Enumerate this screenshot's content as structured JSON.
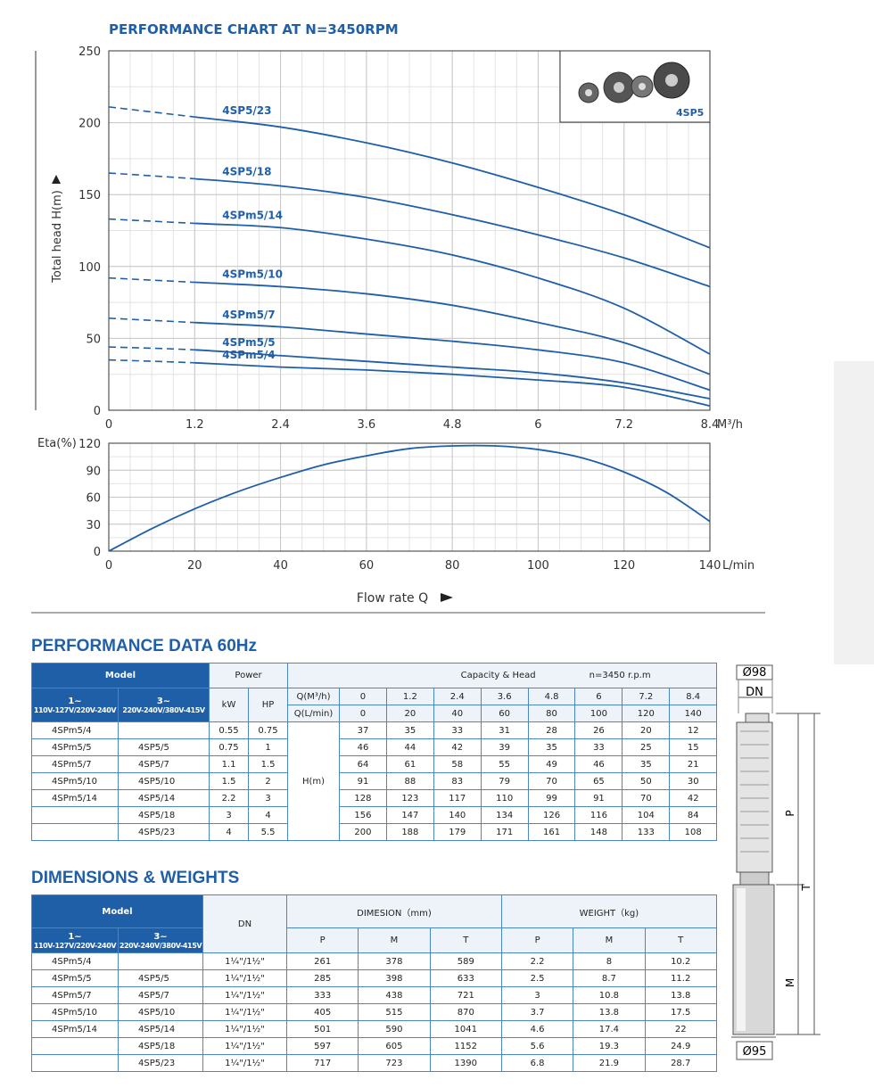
{
  "chart_data": [
    {
      "type": "line",
      "title": "PERFORMANCE CHART AT N=3450RPM",
      "ylabel": "Total head H(m)",
      "x_unit": "M³/h",
      "x": [
        0,
        1.2,
        2.4,
        3.6,
        4.8,
        6,
        7.2,
        8.4
      ],
      "xlim": [
        0,
        8.4
      ],
      "xticks": [
        0,
        1.2,
        2.4,
        3.6,
        4.8,
        6,
        7.2,
        8.4
      ],
      "ylim": [
        0,
        250
      ],
      "yticks": [
        0,
        50,
        100,
        150,
        200,
        250
      ],
      "grid": true,
      "inset_label": "4SP5",
      "series": [
        {
          "name": "4SP5/23",
          "color": "#1f5fa8",
          "values": [
            211,
            204,
            197,
            186,
            172,
            155,
            136,
            113
          ]
        },
        {
          "name": "4SP5/18",
          "color": "#1f5fa8",
          "values": [
            165,
            161,
            156,
            148,
            136,
            122,
            106,
            86
          ]
        },
        {
          "name": "4SPm5/14",
          "color": "#1f5fa8",
          "values": [
            133,
            130,
            127,
            119,
            108,
            92,
            71,
            39
          ]
        },
        {
          "name": "4SPm5/10",
          "color": "#1f5fa8",
          "values": [
            92,
            89,
            86,
            81,
            73,
            61,
            47,
            25
          ]
        },
        {
          "name": "4SPm5/7",
          "color": "#1f5fa8",
          "values": [
            64,
            61,
            58,
            53,
            48,
            42,
            33,
            14
          ]
        },
        {
          "name": "4SPm5/5",
          "color": "#1f5fa8",
          "values": [
            44,
            42,
            38,
            34,
            30,
            26,
            19,
            8
          ]
        },
        {
          "name": "4SPm5/4",
          "color": "#1f5fa8",
          "values": [
            35,
            33,
            30,
            28,
            25,
            21,
            16,
            3
          ]
        }
      ]
    },
    {
      "type": "line",
      "ylabel": "Eta(%)",
      "xlabel": "Flow rate Q",
      "x_unit": "L/min",
      "x": [
        0,
        10,
        20,
        30,
        40,
        50,
        60,
        70,
        80,
        90,
        100,
        110,
        120,
        130,
        140
      ],
      "xlim": [
        0,
        140
      ],
      "xticks": [
        0,
        20,
        40,
        60,
        80,
        100,
        120,
        140
      ],
      "ylim": [
        0,
        120
      ],
      "yticks": [
        0,
        30,
        60,
        90,
        120
      ],
      "grid": true,
      "color": "#1f5fa8",
      "values": [
        0,
        25,
        47,
        66,
        82,
        96,
        106,
        114,
        117,
        117,
        113,
        104,
        88,
        65,
        33
      ]
    }
  ],
  "performance_table": {
    "title": "PERFORMANCE DATA 60Hz",
    "header": {
      "model": "Model",
      "power": "Power",
      "capacity": "Capacity & Head",
      "speed": "n=3450 r.p.m",
      "single_phase": "1~",
      "single_phase_voltage": "110V-127V/220V-240V",
      "three_phase": "3~",
      "three_phase_voltage": "220V-240V/380V-415V",
      "kw": "kW",
      "hp": "HP",
      "q_m3h": "Q(M³/h)",
      "q_lmin": "Q(L/min)",
      "head": "H(m)"
    },
    "q_m3h": [
      0,
      1.2,
      2.4,
      3.6,
      4.8,
      6,
      7.2,
      8.4
    ],
    "q_lmin": [
      0,
      20,
      40,
      60,
      80,
      100,
      120,
      140
    ],
    "rows": [
      [
        "4SPm5/4",
        null,
        0.55,
        0.75,
        37,
        35,
        33,
        31,
        28,
        26,
        20,
        12
      ],
      [
        "4SPm5/5",
        "4SP5/5",
        0.75,
        1,
        46,
        44,
        42,
        39,
        35,
        33,
        25,
        15
      ],
      [
        "4SPm5/7",
        "4SP5/7",
        1.1,
        1.5,
        64,
        61,
        58,
        55,
        49,
        46,
        35,
        21
      ],
      [
        "4SPm5/10",
        "4SP5/10",
        1.5,
        2,
        91,
        88,
        83,
        79,
        70,
        65,
        50,
        30
      ],
      [
        "4SPm5/14",
        "4SP5/14",
        2.2,
        3,
        128,
        123,
        117,
        110,
        99,
        91,
        70,
        42
      ],
      [
        null,
        "4SP5/18",
        3,
        4,
        156,
        147,
        140,
        134,
        126,
        116,
        104,
        84
      ],
      [
        null,
        "4SP5/23",
        4,
        5.5,
        200,
        188,
        179,
        171,
        161,
        148,
        133,
        108
      ]
    ]
  },
  "dimensions_table": {
    "title": "DIMENSIONS & WEIGHTS",
    "header": {
      "model": "Model",
      "single_phase": "1~",
      "single_phase_voltage": "110V-127V/220V-240V",
      "three_phase": "3~",
      "three_phase_voltage": "220V-240V/380V-415V",
      "dn": "DN",
      "dimension": "DIMESION（mm)",
      "weight": "WEIGHT（kg)",
      "dimension_cols": [
        "P",
        "M",
        "T"
      ],
      "weight_cols": [
        "P",
        "M",
        "T"
      ]
    },
    "rows": [
      [
        "4SPm5/4",
        null,
        "1¼\"/1½\"",
        261,
        378,
        589,
        2.2,
        8,
        10.2
      ],
      [
        "4SPm5/5",
        "4SP5/5",
        "1¼\"/1½\"",
        285,
        398,
        633,
        2.5,
        8.7,
        11.2
      ],
      [
        "4SPm5/7",
        "4SP5/7",
        "1¼\"/1½\"",
        333,
        438,
        721,
        3,
        10.8,
        13.8
      ],
      [
        "4SPm5/10",
        "4SP5/10",
        "1¼\"/1½\"",
        405,
        515,
        870,
        3.7,
        13.8,
        17.5
      ],
      [
        "4SPm5/14",
        "4SP5/14",
        "1¼\"/1½\"",
        501,
        590,
        1041,
        4.6,
        17.4,
        22
      ],
      [
        null,
        "4SP5/18",
        "1¼\"/1½\"",
        597,
        605,
        1152,
        5.6,
        19.3,
        24.9
      ],
      [
        null,
        "4SP5/23",
        "1¼\"/1½\"",
        717,
        723,
        1390,
        6.8,
        21.9,
        28.7
      ]
    ]
  },
  "drawing": {
    "outer_diameter": "Ø98",
    "dn": "DN",
    "p": "P",
    "t": "T",
    "m": "M",
    "motor_diameter": "Ø95"
  }
}
